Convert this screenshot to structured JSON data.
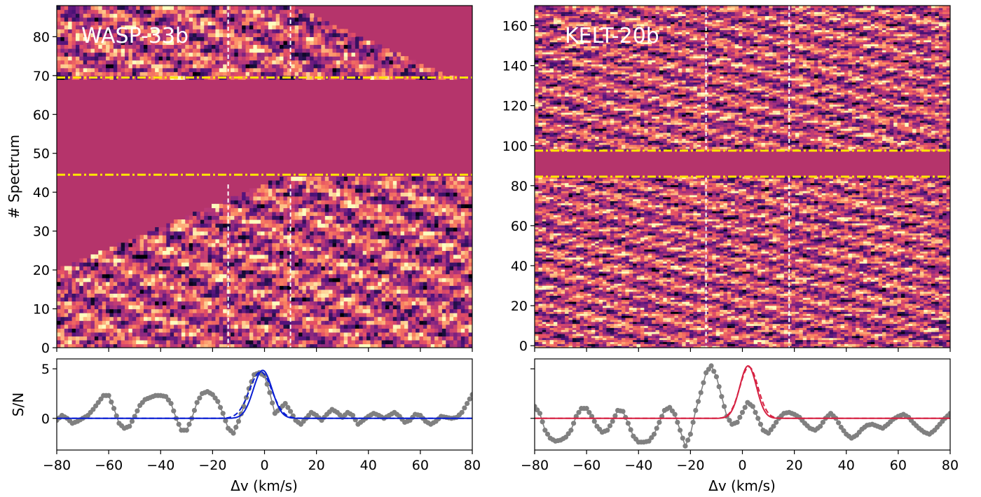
{
  "chart_data": [
    {
      "type": "heatmap",
      "panel": "top-left",
      "label": "WASP-33b",
      "ylabel": "# Spectrum",
      "xlim": [
        -80,
        80
      ],
      "ylim": [
        0,
        88
      ],
      "yticks": [
        0,
        10,
        20,
        30,
        40,
        50,
        60,
        70,
        80
      ],
      "masked_rows": [
        44.5,
        69.5
      ],
      "trail_lines_x": [
        -14,
        10
      ],
      "colormap": "magma",
      "mask_color": "#b5346b",
      "band_color": "#ffe600"
    },
    {
      "type": "line",
      "panel": "bottom-left",
      "ylabel": "S/N",
      "xlabel": "Δv (km/s)",
      "xlim": [
        -80,
        80
      ],
      "ylim": [
        -3.2,
        6
      ],
      "xticks": [
        -80,
        -60,
        -40,
        -20,
        0,
        20,
        40,
        60,
        80
      ],
      "yticks": [
        0,
        5
      ],
      "yticklabels": [
        "0",
        "5"
      ],
      "points_x": [
        -80,
        -78,
        -76,
        -74,
        -72,
        -70,
        -68,
        -66,
        -64,
        -62,
        -60,
        -58,
        -56,
        -54,
        -52,
        -50,
        -48,
        -46,
        -44,
        -42,
        -40,
        -38,
        -36,
        -34,
        -32,
        -30,
        -28,
        -26,
        -24,
        -22,
        -20,
        -18,
        -16,
        -14,
        -12,
        -10,
        -8,
        -6,
        -4,
        -2,
        0,
        2,
        4,
        6,
        8,
        10,
        12,
        14,
        16,
        18,
        20,
        22,
        24,
        26,
        28,
        30,
        32,
        34,
        36,
        38,
        40,
        42,
        44,
        46,
        48,
        50,
        52,
        54,
        56,
        58,
        60,
        62,
        64,
        66,
        68,
        70,
        72,
        74,
        76,
        78,
        80
      ],
      "points_y": [
        -0.2,
        0.3,
        0.0,
        -0.5,
        -0.3,
        0.0,
        0.3,
        0.9,
        1.6,
        2.3,
        2.3,
        1.0,
        -0.5,
        -1.0,
        -0.8,
        0.2,
        1.3,
        1.9,
        2.1,
        2.3,
        2.3,
        2.2,
        1.5,
        0.0,
        -1.2,
        -1.2,
        0.0,
        1.6,
        2.5,
        2.7,
        2.4,
        1.7,
        0.5,
        -1.0,
        -1.5,
        -0.3,
        1.2,
        3.0,
        4.4,
        4.6,
        4.3,
        2.6,
        0.5,
        1.0,
        1.5,
        0.7,
        -0.2,
        -0.6,
        0.0,
        0.6,
        0.3,
        -0.2,
        0.4,
        0.9,
        0.6,
        0.1,
        0.6,
        0.3,
        -0.6,
        -0.2,
        0.2,
        0.5,
        0.3,
        0.0,
        0.3,
        0.6,
        0.2,
        -0.4,
        -0.2,
        0.4,
        0.3,
        -0.3,
        -0.6,
        -0.3,
        0.2,
        0.1,
        0.0,
        0.1,
        0.6,
        1.5,
        2.4
      ],
      "fit_solid": {
        "amplitude": 4.85,
        "center": -0.7,
        "sigma": 3.6
      },
      "fit_dashed": {
        "amplitude": 4.7,
        "center": -1.5,
        "sigma": 4.3
      },
      "point_color": "#808080",
      "fit_color": "#0a1ed2"
    },
    {
      "type": "heatmap",
      "panel": "top-right",
      "label": "KELT-20b",
      "xlim": [
        -80,
        80
      ],
      "ylim": [
        -1,
        170
      ],
      "yticks": [
        0,
        20,
        40,
        60,
        80,
        100,
        120,
        140,
        160
      ],
      "masked_rows": [
        84.5,
        97.5
      ],
      "trail_lines_x": [
        -14,
        18
      ],
      "colormap": "magma",
      "mask_color": "#b5346b",
      "band_color": "#ffe600"
    },
    {
      "type": "line",
      "panel": "bottom-right",
      "xlabel": "Δv (km/s)",
      "xlim": [
        -80,
        80
      ],
      "ylim": [
        -3.2,
        6
      ],
      "xticks": [
        -80,
        -60,
        -40,
        -20,
        0,
        20,
        40,
        60,
        80
      ],
      "points_x": [
        -80,
        -78,
        -76,
        -74,
        -72,
        -70,
        -68,
        -66,
        -64,
        -62,
        -60,
        -58,
        -56,
        -54,
        -52,
        -50,
        -48,
        -46,
        -44,
        -42,
        -40,
        -38,
        -36,
        -34,
        -32,
        -30,
        -28,
        -26,
        -24,
        -22,
        -20,
        -18,
        -16,
        -14,
        -12,
        -10,
        -8,
        -6,
        -4,
        -2,
        0,
        2,
        4,
        6,
        8,
        10,
        12,
        14,
        16,
        18,
        20,
        22,
        24,
        26,
        28,
        30,
        32,
        34,
        36,
        38,
        40,
        42,
        44,
        46,
        48,
        50,
        52,
        54,
        56,
        58,
        60,
        62,
        64,
        66,
        68,
        70,
        72,
        74,
        76,
        78,
        80
      ],
      "points_y": [
        1.2,
        0.5,
        -1.2,
        -2.0,
        -2.3,
        -2.2,
        -1.9,
        -1.2,
        0.2,
        1.0,
        1.0,
        0.2,
        -0.8,
        -1.4,
        -1.2,
        -0.3,
        0.8,
        0.7,
        -0.5,
        -1.8,
        -2.4,
        -2.4,
        -2.3,
        -1.6,
        -0.4,
        0.8,
        1.1,
        0.4,
        -1.2,
        -2.8,
        -1.6,
        0.8,
        2.6,
        4.6,
        5.3,
        4.2,
        2.2,
        0.2,
        -0.6,
        -0.4,
        0.6,
        1.6,
        1.2,
        0.0,
        -1.2,
        -1.5,
        -0.8,
        0.0,
        0.5,
        0.6,
        0.4,
        0.1,
        -0.5,
        -1.0,
        -1.2,
        -0.8,
        0.0,
        0.5,
        0.0,
        -0.9,
        -1.6,
        -2.0,
        -1.7,
        -1.1,
        -0.7,
        -0.6,
        -0.8,
        -1.0,
        -0.6,
        -0.1,
        0.2,
        0.4,
        0.1,
        -0.5,
        -1.0,
        -1.4,
        -1.6,
        -1.2,
        -0.6,
        0.0,
        0.5
      ],
      "fit_solid": {
        "amplitude": 5.3,
        "center": 2.2,
        "sigma": 3.2
      },
      "fit_dashed": {
        "amplitude": 5.2,
        "center": 2.5,
        "sigma": 3.5
      },
      "point_color": "#808080",
      "fit_color": "#d62142"
    }
  ]
}
